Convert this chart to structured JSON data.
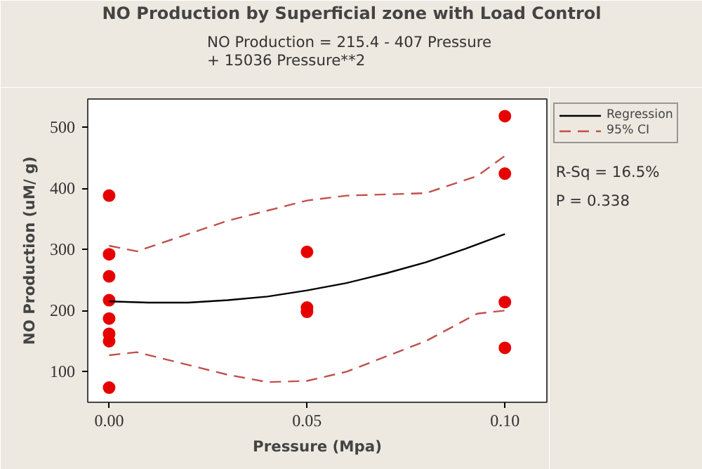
{
  "chart_data": {
    "type": "scatter",
    "title": "NO Production by Superficial zone with Load Control",
    "subtitle": "NO Production =  215.4 - 407 Pressure\n+ 15036 Pressure**2",
    "xlabel": "Pressure (Mpa)",
    "ylabel": "NO Production (uM/ g)",
    "annotations": [
      "R-Sq = 16.5%",
      "P = 0.338"
    ],
    "series": [
      {
        "color": "#e60000",
        "marker": "circle",
        "x": [
          0,
          0,
          0,
          0,
          0,
          0,
          0,
          0,
          0.05,
          0.05,
          0.05,
          0.1,
          0.1,
          0.1,
          0.1
        ],
        "values": [
          388,
          292,
          256,
          217,
          187,
          162,
          150,
          74,
          296,
          205,
          198,
          518,
          424,
          214,
          139
        ]
      },
      {
        "type": "line",
        "name": "Regression",
        "color": "#000000",
        "line_style": "solid",
        "x": [
          0,
          0.01,
          0.02,
          0.03,
          0.04,
          0.05,
          0.06,
          0.07,
          0.08,
          0.09,
          0.1
        ],
        "values": [
          215,
          213,
          213,
          217,
          223,
          233,
          245,
          261,
          279,
          301,
          325
        ]
      },
      {
        "type": "line",
        "name": "95% CI",
        "color": "#c0504d",
        "line_style": "dashed",
        "x": [
          0,
          0.007,
          0.03,
          0.05,
          0.06,
          0.08,
          0.093,
          0.1
        ],
        "values": [
          306,
          297,
          347,
          380,
          388,
          392,
          420,
          453
        ]
      },
      {
        "type": "line",
        "color": "#c0504d",
        "line_style": "dashed",
        "x": [
          0,
          0.007,
          0.03,
          0.04,
          0.05,
          0.06,
          0.08,
          0.093,
          0.1
        ],
        "values": [
          127,
          132,
          95,
          83,
          85,
          100,
          150,
          195,
          200
        ]
      }
    ],
    "xlim": [
      -0.0054,
      0.1106
    ],
    "ylim": [
      50,
      546
    ],
    "xticks": [
      {
        "value": 0,
        "label": "0.00"
      },
      {
        "value": 0.05,
        "label": "0.05"
      },
      {
        "value": 0.1,
        "label": "0.10"
      }
    ],
    "yticks": [
      100,
      200,
      300,
      400,
      500
    ],
    "grid": false,
    "legend": "top right"
  }
}
